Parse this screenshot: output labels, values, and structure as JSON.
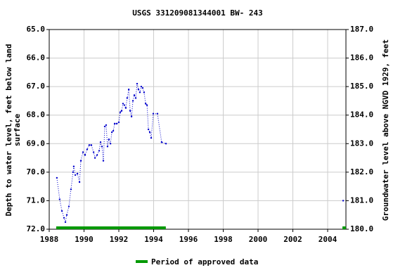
{
  "chart_data": {
    "type": "line",
    "title": "USGS 331209081344001 BW- 243",
    "ylabel": [
      "Depth to water level, feet below land",
      "surface"
    ],
    "y2label": "Groundwater level above NGVD 1929, feet",
    "x": [
      1988.44,
      1988.6,
      1988.73,
      1988.85,
      1988.93,
      1989.01,
      1989.13,
      1989.25,
      1989.37,
      1989.41,
      1989.5,
      1989.62,
      1989.74,
      1989.82,
      1989.94,
      1990.06,
      1990.18,
      1990.3,
      1990.42,
      1990.55,
      1990.63,
      1990.75,
      1990.87,
      1990.95,
      1991.03,
      1991.11,
      1991.19,
      1991.27,
      1991.35,
      1991.43,
      1991.52,
      1991.6,
      1991.68,
      1991.76,
      1991.88,
      1992.0,
      1992.08,
      1992.16,
      1992.24,
      1992.32,
      1992.4,
      1992.48,
      1992.57,
      1992.65,
      1992.73,
      1992.81,
      1992.89,
      1992.97,
      1993.05,
      1993.13,
      1993.21,
      1993.29,
      1993.37,
      1993.45,
      1993.54,
      1993.62,
      1993.7,
      1993.78,
      1993.86,
      1993.98,
      1994.22,
      1994.46,
      1994.71,
      null,
      2004.89
    ],
    "series": [
      {
        "color": "#0000cc",
        "values": [
          70.2,
          70.95,
          71.36,
          71.6,
          71.75,
          71.5,
          71.2,
          70.6,
          70.0,
          69.8,
          70.1,
          70.05,
          70.35,
          69.6,
          69.3,
          69.4,
          69.2,
          69.05,
          69.05,
          69.3,
          69.5,
          69.4,
          69.25,
          68.95,
          69.1,
          69.6,
          68.4,
          68.35,
          69.1,
          68.85,
          69.0,
          68.6,
          68.55,
          68.3,
          68.3,
          68.25,
          67.9,
          67.85,
          67.6,
          67.65,
          67.75,
          67.4,
          67.1,
          67.85,
          68.05,
          67.5,
          67.3,
          67.4,
          66.9,
          67.1,
          67.2,
          67.0,
          67.05,
          67.2,
          67.6,
          67.65,
          68.5,
          68.6,
          68.8,
          67.95,
          67.95,
          68.95,
          69.0,
          null,
          71.0
        ]
      }
    ],
    "xlim": [
      1988,
      2005.05
    ],
    "xticks": [
      1988,
      1990,
      1992,
      1994,
      1996,
      1998,
      2000,
      2002,
      2004
    ],
    "ylim": [
      72,
      65
    ],
    "yticks": [
      {
        "value": 65,
        "label": "65.0"
      },
      {
        "value": 66,
        "label": "66.0"
      },
      {
        "value": 67,
        "label": "67.0"
      },
      {
        "value": 68,
        "label": "68.0"
      },
      {
        "value": 69,
        "label": "69.0"
      },
      {
        "value": 70,
        "label": "70.0"
      },
      {
        "value": 71,
        "label": "71.0"
      },
      {
        "value": 72,
        "label": "72.0"
      }
    ],
    "y2lim": [
      180,
      187
    ],
    "y2ticks": [
      {
        "value": 180,
        "label": "180.0"
      },
      {
        "value": 181,
        "label": "181.0"
      },
      {
        "value": 182,
        "label": "182.0"
      },
      {
        "value": 183,
        "label": "183.0"
      },
      {
        "value": 184,
        "label": "184.0"
      },
      {
        "value": 185,
        "label": "185.0"
      },
      {
        "value": 186,
        "label": "186.0"
      },
      {
        "value": 187,
        "label": "187.0"
      }
    ],
    "grid": true,
    "approved": {
      "label": "Period of approved data",
      "color": "#009900",
      "periods": [
        [
          1988.4,
          1994.7
        ],
        [
          2004.85,
          2005.05
        ]
      ]
    }
  }
}
